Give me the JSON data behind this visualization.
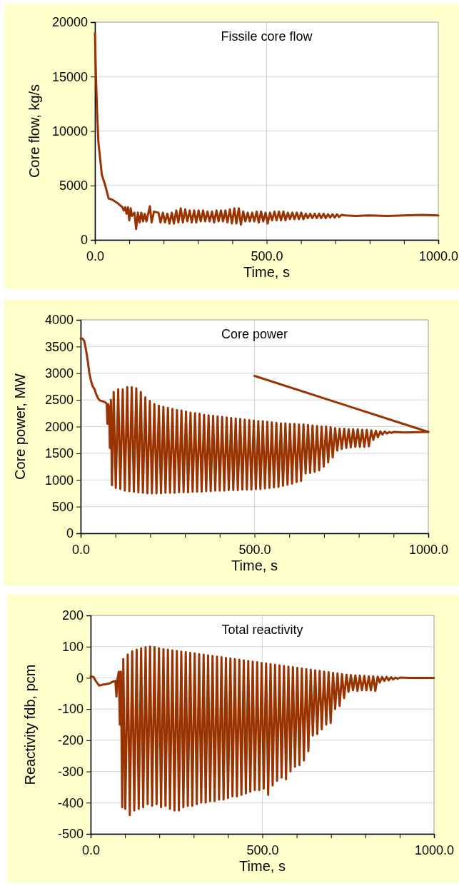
{
  "chart_data": [
    {
      "type": "line",
      "title": "Fissile core flow",
      "xlabel": "Time, s",
      "ylabel": "Core flow, kg/s",
      "xlim": [
        0,
        1000
      ],
      "ylim": [
        0,
        20000
      ],
      "xticks": [
        {
          "value": 0,
          "label": "0.0"
        },
        {
          "value": 100,
          "label": null
        },
        {
          "value": 200,
          "label": null
        },
        {
          "value": 300,
          "label": null
        },
        {
          "value": 400,
          "label": null
        },
        {
          "value": 500,
          "label": "500.0"
        },
        {
          "value": 600,
          "label": null
        },
        {
          "value": 700,
          "label": null
        },
        {
          "value": 800,
          "label": null
        },
        {
          "value": 900,
          "label": null
        },
        {
          "value": 1000,
          "label": "1000.0"
        }
      ],
      "yticks": [
        0,
        5000,
        10000,
        15000,
        20000
      ],
      "grid": true,
      "marker": "none",
      "line_style": "solid",
      "series": [
        {
          "color": "#993300",
          "x": [
            0,
            3,
            6,
            10,
            20,
            30,
            40,
            50,
            65,
            80,
            84,
            88,
            92,
            96,
            100,
            104,
            108,
            115,
            120,
            125,
            130,
            135,
            140,
            145,
            150,
            160,
            165,
            172,
            185,
            191,
            198,
            204,
            211,
            217,
            224,
            230,
            237,
            243,
            250,
            256,
            263,
            269,
            276,
            282,
            289,
            295,
            302,
            308,
            315,
            321,
            328,
            334,
            341,
            347,
            354,
            360,
            367,
            373,
            380,
            386,
            393,
            399,
            406,
            412,
            419,
            425,
            432,
            438,
            445,
            451,
            458,
            464,
            471,
            477,
            484,
            490,
            497,
            503,
            510,
            516,
            523,
            529,
            536,
            542,
            549,
            555,
            562,
            568,
            575,
            581,
            588,
            594,
            601,
            607,
            614,
            620,
            627,
            633,
            640,
            646,
            653,
            659,
            666,
            672,
            679,
            685,
            692,
            698,
            705,
            711,
            718,
            730,
            760,
            800,
            850,
            900,
            950,
            1000
          ],
          "values": [
            19000,
            15000,
            12000,
            9000,
            6000,
            5000,
            3800,
            3700,
            3400,
            3000,
            2700,
            3000,
            2400,
            3000,
            1800,
            2900,
            2200,
            2500,
            1000,
            2500,
            1600,
            2500,
            1700,
            2400,
            1700,
            3100,
            1600,
            2600,
            2500,
            1600,
            2500,
            1600,
            2400,
            1500,
            2500,
            1500,
            2700,
            1600,
            2900,
            1600,
            2800,
            1700,
            2700,
            1600,
            2700,
            1600,
            2700,
            1700,
            2700,
            1700,
            2600,
            1700,
            2600,
            1600,
            2700,
            1700,
            2700,
            1700,
            2700,
            1600,
            2800,
            1500,
            2900,
            1500,
            2900,
            1400,
            2600,
            1700,
            2500,
            1700,
            2500,
            1700,
            2600,
            1600,
            2600,
            1700,
            2500,
            1500,
            2500,
            1800,
            2600,
            1800,
            2600,
            1800,
            2600,
            1800,
            2500,
            1900,
            2500,
            1900,
            2500,
            1900,
            2500,
            1900,
            2400,
            2000,
            2400,
            2000,
            2400,
            2000,
            2400,
            2000,
            2400,
            2000,
            2350,
            2050,
            2350,
            2050,
            2350,
            2100,
            2300,
            2250,
            2200,
            2250,
            2200,
            2250,
            2300,
            2250
          ]
        }
      ]
    },
    {
      "type": "line",
      "title": "Core power",
      "xlabel": "Time, s",
      "ylabel": "Core power, MW",
      "xlim": [
        0,
        1000
      ],
      "ylim": [
        0,
        4000
      ],
      "xticks": [
        {
          "value": 0,
          "label": "0.0"
        },
        {
          "value": 100,
          "label": null
        },
        {
          "value": 200,
          "label": null
        },
        {
          "value": 300,
          "label": null
        },
        {
          "value": 400,
          "label": null
        },
        {
          "value": 500,
          "label": "500.0"
        },
        {
          "value": 600,
          "label": null
        },
        {
          "value": 700,
          "label": null
        },
        {
          "value": 800,
          "label": null
        },
        {
          "value": 900,
          "label": null
        },
        {
          "value": 1000,
          "label": "1000.0"
        }
      ],
      "yticks": [
        0,
        500,
        1000,
        1500,
        2000,
        2500,
        3000,
        3500,
        4000
      ],
      "grid": true,
      "marker": "none",
      "line_style": "solid",
      "series": [
        {
          "color": "#993300",
          "x": [
            0,
            5,
            10,
            15,
            20,
            25,
            30,
            35,
            40,
            45,
            50,
            55,
            65,
            72,
            75,
            77,
            79,
            82,
            84,
            87,
            90,
            95,
            101,
            108,
            114,
            121,
            127,
            134,
            140,
            147,
            153,
            160,
            166,
            173,
            179,
            186,
            192,
            199,
            205,
            212,
            218,
            225,
            231,
            238,
            244,
            251,
            257,
            264,
            270,
            277,
            283,
            290,
            296,
            303,
            309,
            316,
            322,
            329,
            335,
            342,
            348,
            355,
            361,
            368,
            374,
            381,
            387,
            394,
            400,
            407,
            413,
            420,
            426,
            433,
            439,
            446,
            452,
            459,
            465,
            472,
            478,
            485,
            491,
            498,
            504,
            511,
            517,
            524,
            530,
            537,
            543,
            550,
            556,
            563,
            569,
            576,
            582,
            589,
            595,
            602,
            608,
            615,
            621,
            628,
            634,
            641,
            647,
            654,
            660,
            667,
            673,
            680,
            686,
            693,
            699,
            706,
            712,
            719,
            725,
            732,
            738,
            745,
            751,
            758,
            764,
            771,
            777,
            784,
            790,
            797,
            803,
            810,
            816,
            823,
            829,
            836,
            842,
            849,
            855,
            862,
            868,
            875,
            881,
            888,
            894,
            901,
            930,
            1000
          ],
          "values": [
            3650,
            3650,
            3610,
            3450,
            3250,
            3000,
            2850,
            2750,
            2700,
            2600,
            2530,
            2490,
            2470,
            2450,
            2420,
            2050,
            2420,
            2350,
            1600,
            2500,
            900,
            2650,
            850,
            2700,
            830,
            2700,
            800,
            2740,
            790,
            2740,
            780,
            2720,
            770,
            2650,
            760,
            2550,
            750,
            2480,
            750,
            2420,
            750,
            2390,
            750,
            2370,
            760,
            2350,
            760,
            2330,
            760,
            2310,
            770,
            2300,
            770,
            2280,
            770,
            2260,
            780,
            2250,
            780,
            2240,
            780,
            2220,
            790,
            2210,
            790,
            2200,
            800,
            2190,
            800,
            2180,
            800,
            2170,
            810,
            2160,
            810,
            2150,
            810,
            2140,
            820,
            2130,
            820,
            2120,
            820,
            2110,
            830,
            2100,
            830,
            2100,
            840,
            2090,
            850,
            2080,
            860,
            2070,
            870,
            2060,
            890,
            2060,
            910,
            2050,
            930,
            2050,
            960,
            2040,
            980,
            2040,
            1120,
            2030,
            1130,
            2020,
            1150,
            2010,
            1180,
            2000,
            1250,
            2000,
            1330,
            1990,
            1420,
            1970,
            1550,
            1960,
            1580,
            1960,
            1600,
            1950,
            1610,
            1950,
            1620,
            1950,
            1620,
            1940,
            1620,
            1940,
            1630,
            1930,
            1750,
            1920,
            1800,
            1910,
            1850,
            1910,
            1870,
            1900,
            1880,
            1900,
            1890,
            1900
          ]
        },
        {
          "color": "#993300",
          "x": [
            500,
            1000
          ],
          "values": [
            2950,
            1900
          ]
        }
      ]
    },
    {
      "type": "line",
      "title": "Total reactivity",
      "xlabel": "Time, s",
      "ylabel": "Reactivity fdb, pcm",
      "xlim": [
        0,
        1000
      ],
      "ylim": [
        -500,
        200
      ],
      "xticks": [
        {
          "value": 0,
          "label": "0.0"
        },
        {
          "value": 100,
          "label": null
        },
        {
          "value": 200,
          "label": null
        },
        {
          "value": 300,
          "label": null
        },
        {
          "value": 400,
          "label": null
        },
        {
          "value": 500,
          "label": "500.0"
        },
        {
          "value": 600,
          "label": null
        },
        {
          "value": 700,
          "label": null
        },
        {
          "value": 800,
          "label": null
        },
        {
          "value": 900,
          "label": null
        },
        {
          "value": 1000,
          "label": "1000.0"
        }
      ],
      "yticks": [
        -500,
        -400,
        -300,
        -200,
        -100,
        0,
        100,
        200
      ],
      "grid": true,
      "marker": "none",
      "line_style": "solid",
      "series": [
        {
          "color": "#993300",
          "x": [
            0,
            8,
            15,
            25,
            35,
            45,
            55,
            65,
            72,
            75,
            78,
            82,
            85,
            88,
            92,
            95,
            101,
            108,
            114,
            121,
            127,
            134,
            140,
            147,
            153,
            160,
            166,
            173,
            179,
            186,
            192,
            199,
            205,
            212,
            218,
            225,
            231,
            238,
            244,
            251,
            257,
            264,
            270,
            277,
            283,
            290,
            296,
            303,
            309,
            316,
            322,
            329,
            335,
            342,
            348,
            355,
            361,
            368,
            374,
            381,
            387,
            394,
            400,
            407,
            413,
            420,
            426,
            433,
            439,
            446,
            452,
            459,
            465,
            472,
            478,
            485,
            491,
            498,
            504,
            511,
            517,
            524,
            530,
            537,
            543,
            550,
            556,
            563,
            569,
            576,
            582,
            589,
            595,
            602,
            608,
            615,
            621,
            628,
            634,
            641,
            647,
            654,
            660,
            667,
            673,
            680,
            686,
            693,
            699,
            706,
            712,
            719,
            725,
            732,
            738,
            745,
            751,
            758,
            764,
            771,
            777,
            784,
            790,
            797,
            803,
            810,
            816,
            823,
            829,
            836,
            842,
            849,
            855,
            862,
            868,
            875,
            881,
            888,
            894,
            901,
            930,
            1000
          ],
          "values": [
            5,
            3,
            -10,
            -25,
            -22,
            -20,
            -18,
            -12,
            -10,
            -60,
            -5,
            20,
            -150,
            20,
            -415,
            60,
            -420,
            75,
            -440,
            85,
            -425,
            90,
            -420,
            95,
            -415,
            98,
            -405,
            100,
            -410,
            98,
            -405,
            95,
            -415,
            92,
            -410,
            90,
            -420,
            88,
            -425,
            86,
            -425,
            84,
            -415,
            82,
            -410,
            80,
            -410,
            78,
            -405,
            76,
            -400,
            74,
            -400,
            72,
            -395,
            70,
            -395,
            68,
            -390,
            66,
            -390,
            64,
            -385,
            62,
            -380,
            60,
            -380,
            58,
            -375,
            56,
            -370,
            54,
            -365,
            52,
            -360,
            50,
            -360,
            48,
            -355,
            46,
            -375,
            44,
            -345,
            42,
            -330,
            40,
            -320,
            38,
            -325,
            36,
            -300,
            34,
            -285,
            32,
            -280,
            30,
            -265,
            28,
            -235,
            26,
            -185,
            24,
            -180,
            22,
            -165,
            20,
            -150,
            18,
            -145,
            16,
            -100,
            14,
            -90,
            12,
            -65,
            10,
            -45,
            9,
            -40,
            8,
            -42,
            7,
            -40,
            6,
            -40,
            5,
            -40,
            5,
            -42,
            4,
            -15,
            3,
            -10,
            3,
            -8,
            2,
            -5,
            1,
            -3,
            1,
            0,
            0
          ]
        }
      ]
    }
  ]
}
